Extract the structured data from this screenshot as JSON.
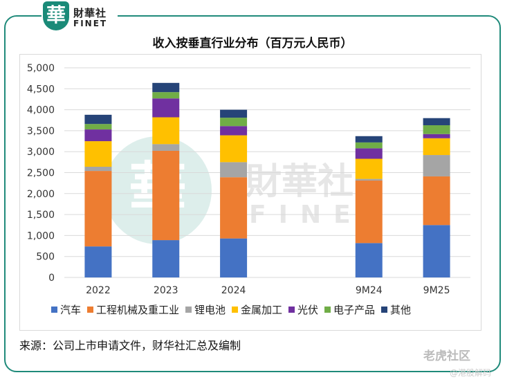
{
  "header": {
    "logo_glyph": "華",
    "logo_cn": "財華社",
    "logo_en": "FINET"
  },
  "watermark": {
    "glyph": "華",
    "cn": "財華社",
    "en": "FINET"
  },
  "colors": {
    "frame": "#1f8a7a",
    "grid": "#d9d9d9"
  },
  "chart_data": {
    "type": "bar",
    "stacked": true,
    "title": "收入按垂直行业分布（百万元人民币）",
    "xlabel": "",
    "ylabel": "",
    "ylim": [
      0,
      5000
    ],
    "yticks": [
      "0",
      "500",
      "1,000",
      "1,500",
      "2,000",
      "2,500",
      "3,000",
      "3,500",
      "4,000",
      "4,500",
      "5,000"
    ],
    "categories": [
      "2022",
      "2023",
      "2024",
      "",
      "9M24",
      "9M25"
    ],
    "legend_position": "bottom",
    "grid": true,
    "series": [
      {
        "name": "汽车",
        "color": "#4472C4",
        "values": [
          740,
          890,
          930,
          null,
          820,
          1250
        ]
      },
      {
        "name": "工程机械及重工业",
        "color": "#ED7D31",
        "values": [
          1800,
          2130,
          1460,
          null,
          1490,
          1160
        ]
      },
      {
        "name": "锂电池",
        "color": "#A5A5A5",
        "values": [
          100,
          160,
          360,
          null,
          40,
          510
        ]
      },
      {
        "name": "金属加工",
        "color": "#FFC000",
        "values": [
          610,
          640,
          640,
          null,
          480,
          400
        ]
      },
      {
        "name": "光伏",
        "color": "#7030A0",
        "values": [
          280,
          450,
          220,
          null,
          250,
          100
        ]
      },
      {
        "name": "电子产品",
        "color": "#70AD47",
        "values": [
          130,
          150,
          200,
          null,
          140,
          210
        ]
      },
      {
        "name": "其他",
        "color": "#264478",
        "values": [
          220,
          220,
          190,
          null,
          150,
          170
        ]
      }
    ]
  },
  "footer": {
    "source": "来源：公司上市申请文件，财华社汇总及编制",
    "brand": "老虎社区",
    "brand_sub": "@港股解码"
  }
}
